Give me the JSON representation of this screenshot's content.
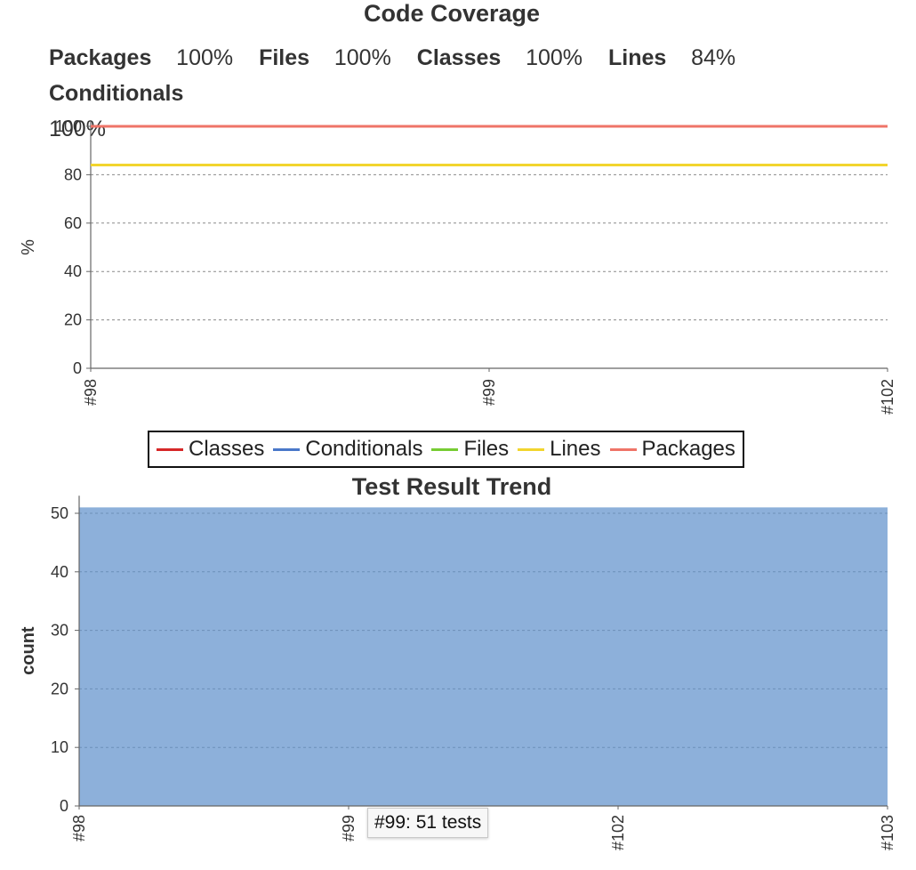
{
  "coverage": {
    "title": "Code Coverage",
    "summary": [
      {
        "label": "Packages",
        "value": "100%"
      },
      {
        "label": "Files",
        "value": "100%"
      },
      {
        "label": "Classes",
        "value": "100%"
      },
      {
        "label": "Lines",
        "value": "84%"
      },
      {
        "label": "Conditionals",
        "value": "100%"
      }
    ]
  },
  "trend": {
    "title": "Test Result Trend",
    "tooltip": "#99: 51 tests"
  },
  "chart_data": [
    {
      "type": "line",
      "title": "Code Coverage",
      "ylabel": "%",
      "xlabel": "",
      "ylim": [
        0,
        100
      ],
      "yticks": [
        0,
        20,
        40,
        60,
        80,
        100
      ],
      "x": [
        "#98",
        "#99",
        "#102"
      ],
      "grid": true,
      "legend_placement": "bottom",
      "series": [
        {
          "name": "Classes",
          "color": "#d62728",
          "values": [
            100,
            100,
            100
          ]
        },
        {
          "name": "Conditionals",
          "color": "#4a78c9",
          "values": [
            100,
            100,
            100
          ]
        },
        {
          "name": "Files",
          "color": "#77cc33",
          "values": [
            100,
            100,
            100
          ]
        },
        {
          "name": "Lines",
          "color": "#f2d52e",
          "values": [
            84,
            84,
            84
          ]
        },
        {
          "name": "Packages",
          "color": "#ef7468",
          "values": [
            100,
            100,
            100
          ]
        }
      ]
    },
    {
      "type": "area",
      "title": "Test Result Trend",
      "ylabel": "count",
      "xlabel": "",
      "ylim": [
        0,
        53
      ],
      "yticks": [
        0,
        10,
        20,
        30,
        40,
        50
      ],
      "x": [
        "#98",
        "#99",
        "#102",
        "#103"
      ],
      "grid": true,
      "series": [
        {
          "color": "#8db0da",
          "values": [
            51,
            51,
            51,
            51
          ]
        }
      ]
    }
  ]
}
